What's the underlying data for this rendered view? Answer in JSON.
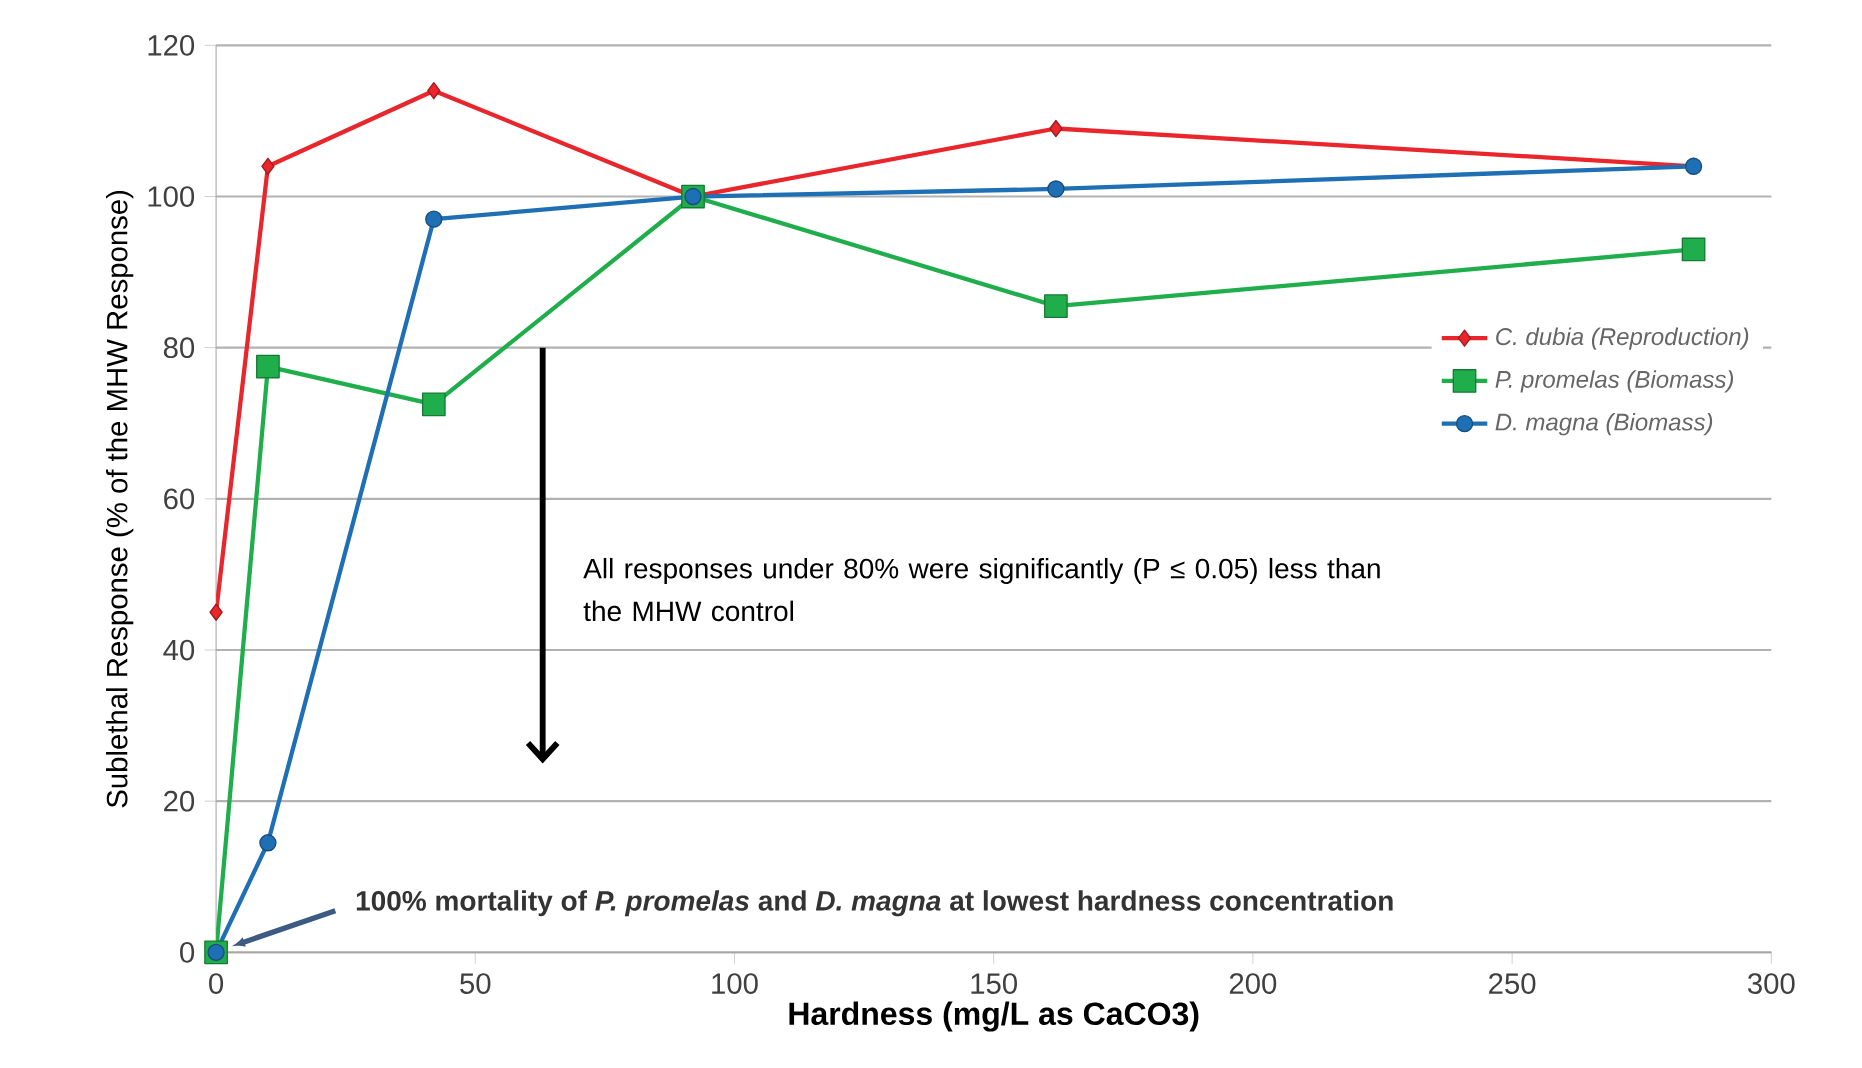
{
  "chart_data": {
    "type": "line",
    "xlabel": "Hardness (mg/L as CaCO3)",
    "ylabel": "Sublethal Response (% of the MHW Response)",
    "xlim": [
      0,
      300
    ],
    "xticks": [
      0,
      50,
      100,
      150,
      200,
      250,
      300
    ],
    "ylim": [
      0,
      120
    ],
    "yticks": [
      0,
      20,
      40,
      60,
      80,
      100,
      120
    ],
    "grid": "y",
    "legend": "right",
    "line_style": "solid",
    "series": [
      {
        "name": "C. dubia (Reproduction)",
        "color": "#e8262b",
        "marker": "diamond",
        "x": [
          0,
          10,
          42,
          92,
          162,
          285
        ],
        "values": [
          45,
          104,
          114,
          100,
          109,
          104
        ]
      },
      {
        "name": "P. promelas (Biomass)",
        "color": "#1fae4b",
        "marker": "square",
        "x": [
          0,
          10,
          42,
          92,
          162,
          285
        ],
        "values": [
          0,
          77.5,
          72.5,
          100,
          85.5,
          93
        ]
      },
      {
        "name": "D. magna (Biomass)",
        "color": "#1f6fb5",
        "marker": "circle",
        "x": [
          0,
          10,
          42,
          92,
          162,
          285
        ],
        "values": [
          0,
          14.5,
          97,
          100,
          101,
          104
        ]
      }
    ],
    "annotations": [
      "All responses under 80% were significantly (P ≤ 0.05) less than the MHW control",
      "100% mortality of *P. promelas* and *D. magna* at lowest hardness concentration"
    ]
  }
}
